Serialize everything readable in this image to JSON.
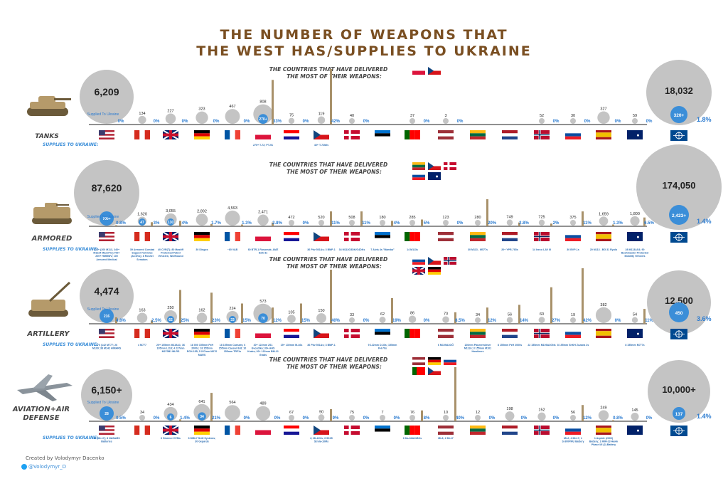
{
  "title": {
    "line1": "THE NUMBER OF WEAPONS THAT",
    "line2": "THE WEST HAS/SUPPLIES TO UKRAINE"
  },
  "footer": {
    "credit": "Created by Volodymyr Dacenko",
    "handle": "@Volodymyr_D"
  },
  "colors": {
    "title": "#7a4f22",
    "gray_circle": "#c4c4c4",
    "supplied_circle": "#3b8ed8",
    "percent_bar": "#a8916a",
    "percent_text": "#2b7bd0",
    "section_label": "#555555"
  },
  "country_order": [
    "USA",
    "Canada",
    "UK",
    "Germany",
    "France",
    "Poland",
    "Croatia",
    "Czech Republic",
    "Denmark",
    "Estonia",
    "Portugal",
    "Latvia",
    "Lithuania",
    "Netherlands",
    "Norway",
    "Slovakia",
    "Spain",
    "Australia"
  ],
  "chart_data": [
    {
      "type": "bar",
      "section": "TANKS",
      "subtitle": "THE COUNTRIES THAT HAVE DELIVERED THE MOST OF THEIR WEAPONS:",
      "top_flags": [
        "Poland",
        "Czech Republic"
      ],
      "supplies_label": "SUPPLIES TO UKRAINE:",
      "supplied_to_ukraine_label": "Supplied To Ukraine",
      "categories": [
        "USA",
        "Canada",
        "UK",
        "Germany",
        "France",
        "Poland",
        "Croatia",
        "Czech Republic",
        "Denmark",
        "Estonia",
        "Portugal",
        "Latvia",
        "Lithuania",
        "Netherlands",
        "Norway",
        "Slovakia",
        "Spain",
        "Australia"
      ],
      "series": [
        {
          "name": "Total",
          "values": [
            "6,209",
            "134",
            "227",
            "323",
            "467",
            "808",
            "75",
            "119",
            "40",
            "",
            "37",
            "3",
            "",
            "",
            "52",
            "30",
            "327",
            "59"
          ]
        },
        {
          "name": "Supplied",
          "values": [
            "",
            "",
            "",
            "",
            "",
            "270+",
            "",
            "",
            "",
            "",
            "",
            "",
            "",
            "",
            "",
            "",
            "",
            ""
          ]
        },
        {
          "name": "Percent",
          "values": [
            0,
            0,
            0,
            0,
            0,
            33,
            0,
            42,
            0,
            0,
            0,
            0,
            0,
            0,
            0,
            0,
            0,
            0
          ]
        }
      ],
      "percent_labels": [
        "0%",
        "0%",
        "0%",
        "0%",
        "0%",
        "33%",
        "0%",
        "42%",
        "0%",
        "",
        "0%",
        "0%",
        "",
        "",
        "0%",
        "0%",
        "0%",
        "0%"
      ],
      "notes": [
        "",
        "",
        "",
        "",
        "",
        "270+ T-72; PT-91",
        "",
        "40+ T-72Mis",
        "",
        "",
        "",
        "",
        "",
        "",
        "",
        "",
        "",
        ""
      ],
      "nato": {
        "total": "18,032",
        "supplied": "320+",
        "percent": "1.8%"
      }
    },
    {
      "type": "bar",
      "section": "ARMORED",
      "subtitle": "THE COUNTRIES THAT HAVE DELIVERED THE MOST OF THEIR WEAPONS:",
      "top_flags": [
        "Lithuania",
        "Czech Republic",
        "Denmark",
        "Slovakia",
        "Australia"
      ],
      "supplies_label": "SUPPLIES TO UKRAINE:",
      "supplied_to_ukraine_label": "Supplied To Ukraine",
      "categories": [
        "USA",
        "Canada",
        "UK",
        "Germany",
        "France",
        "Poland",
        "Croatia",
        "Czech Republic",
        "Denmark",
        "Estonia",
        "Portugal",
        "Latvia",
        "Lithuania",
        "Netherlands",
        "Norway",
        "Slovakia",
        "Spain",
        "Australia"
      ],
      "series": [
        {
          "name": "Total",
          "values": [
            "87,620",
            "1,620",
            "3,055",
            "2,892",
            "4,593",
            "2,471",
            "472",
            "520",
            "508",
            "180",
            "285",
            "123",
            "280",
            "749",
            "725",
            "375",
            "1,659",
            "1,800"
          ]
        },
        {
          "name": "Supplied",
          "values": [
            "700+",
            "47",
            "130",
            "",
            "",
            "",
            "",
            "",
            "",
            "",
            "",
            "",
            "",
            "",
            "",
            "",
            "",
            ""
          ]
        },
        {
          "name": "Percent",
          "values": [
            0.8,
            3,
            4,
            1.7,
            1.3,
            2.8,
            0,
            11,
            11,
            4,
            5,
            0,
            20,
            2.8,
            2,
            11,
            1.3,
            6.5
          ]
        }
      ],
      "percent_labels": [
        "0.8%",
        "3%",
        "4%",
        "1.7%",
        "1.3%",
        "2.8%",
        "0%",
        "11%",
        "11%",
        "4%",
        "5%",
        "0%",
        "20%",
        "2.8%",
        "2%",
        "11%",
        "1.3%",
        "6.5%"
      ],
      "notes": [
        "440+ (200 M113, 240+ M1224 MaxxPro) 700+ 200+ HMMWV; 100 Armored Medical Vehicles)",
        "39 Armored Combat Support Vehicles (ACSVs); 8 Roshel Senators",
        "40 CVR(T); 80 Mastiff Protected Patrol Vehicles; Wolfhound",
        "30 Dingos",
        "~60 VAB",
        "60 BTR-1 Rosomak; AMZ Dzik-3s",
        "",
        "36 Pbv 501As; 3 BMP-1",
        "34 M113G3DK/G4DKs",
        "7 Alvis 4s \"Mamba\"",
        "14 M113s",
        "",
        "30 M113 - M577s",
        "20+ YPR-765s",
        "14 Iveco LAV III",
        "30 BVP-1s",
        "20 M113 - BG 31 Ryulo",
        "28 M113AS4; 90 Bushmaster Protected Mobility Vehicles"
      ],
      "nato": {
        "total": "174,050",
        "supplied": "2,423+",
        "percent": "1.4%"
      }
    },
    {
      "type": "bar",
      "section": "ARTILLERY",
      "subtitle": "THE COUNTRIES THAT HAVE DELIVERED THE MOST OF THEIR WEAPONS:",
      "top_flags": [
        "Slovakia",
        "Czech Republic",
        "Norway",
        "UK",
        "Germany"
      ],
      "supplies_label": "SUPPLIES TO UKRAINE:",
      "supplied_to_ukraine_label": "Supplied To Ukraine",
      "categories": [
        "USA",
        "Canada",
        "UK",
        "Germany",
        "France",
        "Poland",
        "Croatia",
        "Czech Republic",
        "Denmark",
        "Estonia",
        "Portugal",
        "Latvia",
        "Lithuania",
        "Netherlands",
        "Norway",
        "Slovakia",
        "Spain",
        "Australia"
      ],
      "series": [
        {
          "name": "Total",
          "values": [
            "4,474",
            "163",
            "250",
            "162",
            "224",
            "573",
            "105",
            "150",
            "33",
            "62",
            "86",
            "70",
            "34",
            "56",
            "60",
            "19",
            "382",
            "54"
          ]
        },
        {
          "name": "Supplied",
          "values": [
            "216",
            "",
            "62",
            "",
            "33",
            "70",
            "",
            "",
            "",
            "",
            "",
            "",
            "",
            "",
            "",
            "",
            "",
            ""
          ]
        },
        {
          "name": "Percent",
          "values": [
            4.8,
            2.5,
            25,
            23,
            15,
            12,
            15,
            40,
            0,
            19,
            0,
            8.5,
            12,
            14,
            27,
            42,
            0,
            11
          ]
        }
      ],
      "percent_labels": [
        "4.8%",
        "2.5%",
        "25%",
        "23%",
        "15%",
        "12%",
        "15%",
        "40%",
        "0%",
        "19%",
        "0%",
        "8.5%",
        "12%",
        "14%",
        "27%",
        "42%",
        "0%",
        "11%"
      ],
      "notes": [
        "170 (142 M777; 26 M109; 38 M142 HIMARS",
        "4 M777",
        "20+ 105mm M119A1; 36 105mm L118; 4 227mm M270B1 MLRS",
        "18 000 155mm PzH 2000s; 18 155mm RCH-155; 5 227mm M270 MARS",
        "18 155mm Caesars; 6 155mm Caesar 8x8; 10 155mm TRF1s",
        "20+ 122mm 2S1 Gvozdika; 30+ AHS Krabs; 20+ 122mm BM-21 Grads",
        "15+ 130mm M-46s",
        "36 Pbv 501As; 3 BMP-1",
        "",
        "9 122mm D-30s; 155mm FH-70s",
        "",
        "6 M109A3GÖ",
        "120mm Panzermörser M113s; 3 155mm M101 Howitzers",
        "8 155mm PzH 2000s",
        "22 155mm M109A3GNs",
        "8 155mm ShKH Zuzana 2s",
        "",
        "8 155mm M777s"
      ],
      "nato": {
        "total": "12,500",
        "supplied": "450",
        "percent": "3.6%"
      }
    },
    {
      "type": "bar",
      "section": "AVIATION+AIR DEFENSE",
      "subtitle": "THE COUNTRIES THAT HAVE DELIVERED THE MOST OF THEIR WEAPONS:",
      "top_flags": [
        "Latvia",
        "Germany",
        "Slovakia",
        "Portugal",
        "Czech Republic"
      ],
      "supplies_label": "SUPPLIES TO UKRAINE:",
      "supplied_to_ukraine_label": "Supplied To Ukraine",
      "categories": [
        "USA",
        "Canada",
        "UK",
        "Germany",
        "France",
        "Poland",
        "Croatia",
        "Czech Republic",
        "Denmark",
        "Estonia",
        "Portugal",
        "Latvia",
        "Lithuania",
        "Netherlands",
        "Norway",
        "Slovakia",
        "Spain",
        "Australia"
      ],
      "series": [
        {
          "name": "Total",
          "values": [
            "6,150+",
            "34",
            "434",
            "641",
            "564",
            "489",
            "67",
            "90",
            "75",
            "7",
            "76",
            "10",
            "12",
            "198",
            "152",
            "56",
            "249",
            "145"
          ]
        },
        {
          "name": "Supplied",
          "values": [
            "28",
            "",
            "6",
            "34",
            "",
            "",
            "",
            "",
            "",
            "",
            "",
            "",
            "",
            "",
            "",
            "",
            "",
            ""
          ]
        },
        {
          "name": "Percent",
          "values": [
            0.5,
            0,
            1.4,
            21,
            0,
            0,
            0,
            9,
            0,
            0,
            8,
            40,
            0,
            0,
            0,
            12,
            0.8,
            0
          ]
        }
      ],
      "percent_labels": [
        "0.5%",
        "0%",
        "1.4%",
        "21%",
        "0%",
        "0%",
        "0%",
        "9%",
        "0%",
        "0%",
        "8%",
        "40%",
        "0%",
        "0%",
        "0%",
        "12%",
        "0.8%",
        "0%"
      ],
      "notes": [
        "20 (Mi-17); 8 NASAMS Batteries",
        "",
        "6 Stormer HVMs",
        "6 MIM-7 SLM Systems; 30 Gepards",
        "",
        "",
        "",
        "2; Mi-24Vs; 6 9K35 Strela-10Ms",
        "",
        "",
        "6 Ka-32A11BCs",
        "Mi-8; 2 Mi-17",
        "",
        "",
        "",
        "Mi-2; 4 Mi-17; 1 S-300PMU Battery",
        "1 Aspide (2000) Battery; 1 MIM-23 Hawk Phase I/II (2) Battery",
        ""
      ],
      "nato": {
        "total": "10,000+",
        "supplied": "137",
        "percent": "1.4%"
      }
    }
  ]
}
